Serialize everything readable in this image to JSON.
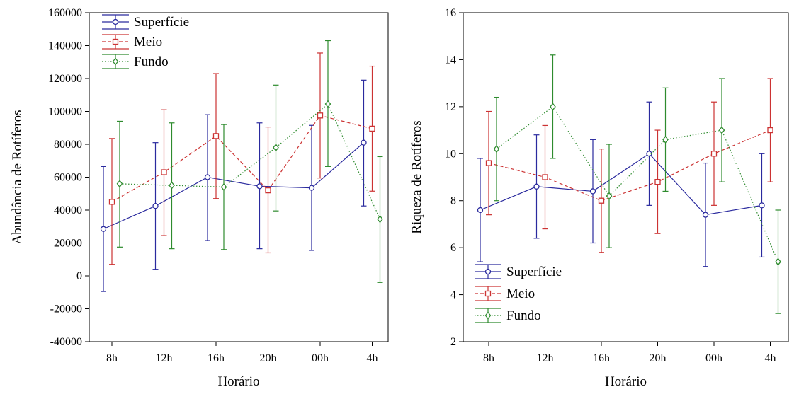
{
  "chart_data": [
    {
      "type": "line",
      "xlabel": "Horário",
      "ylabel": "Abundância de Rotíferos",
      "categories": [
        "8h",
        "12h",
        "16h",
        "20h",
        "00h",
        "4h"
      ],
      "ylim": [
        -40000,
        160000
      ],
      "yticks": [
        "-40000",
        "-20000",
        "0",
        "20000",
        "40000",
        "60000",
        "80000",
        "100000",
        "120000",
        "140000",
        "160000"
      ],
      "ytick_values": [
        -40000,
        -20000,
        0,
        20000,
        40000,
        60000,
        80000,
        100000,
        120000,
        140000,
        160000
      ],
      "legend_position": "top-left",
      "series": [
        {
          "name": "Superfície",
          "color": "#2a2a9e",
          "dash": "solid",
          "marker": "circle",
          "values": [
            28500,
            42500,
            60000,
            54500,
            53500,
            81000
          ],
          "lower": [
            -9500,
            4000,
            21500,
            16500,
            15500,
            42500
          ],
          "upper": [
            66500,
            81000,
            98000,
            93000,
            91500,
            119000
          ]
        },
        {
          "name": "Meio",
          "color": "#cc3333",
          "dash": "dashed",
          "marker": "square",
          "values": [
            45000,
            63000,
            85000,
            52000,
            97500,
            89500
          ],
          "lower": [
            7000,
            24500,
            47000,
            14000,
            59500,
            51500
          ],
          "upper": [
            83500,
            101000,
            123000,
            90500,
            135500,
            127500
          ]
        },
        {
          "name": "Fundo",
          "color": "#2e8b2e",
          "dash": "dotted",
          "marker": "diamond",
          "values": [
            56000,
            55000,
            54000,
            78000,
            104500,
            34500
          ],
          "lower": [
            17500,
            16500,
            16000,
            39500,
            66500,
            -4000
          ],
          "upper": [
            94000,
            93000,
            92000,
            116000,
            143000,
            72500
          ]
        }
      ]
    },
    {
      "type": "line",
      "xlabel": "Horário",
      "ylabel": "Riqueza de Rotíferos",
      "categories": [
        "8h",
        "12h",
        "16h",
        "20h",
        "00h",
        "4h"
      ],
      "ylim": [
        2,
        16
      ],
      "yticks": [
        "2",
        "4",
        "6",
        "8",
        "10",
        "12",
        "14",
        "16"
      ],
      "ytick_values": [
        2,
        4,
        6,
        8,
        10,
        12,
        14,
        16
      ],
      "legend_position": "bottom-left",
      "series": [
        {
          "name": "Superfície",
          "color": "#2a2a9e",
          "dash": "solid",
          "marker": "circle",
          "values": [
            7.6,
            8.6,
            8.4,
            10.0,
            7.4,
            7.8
          ],
          "lower": [
            5.4,
            6.4,
            6.2,
            7.8,
            5.2,
            5.6
          ],
          "upper": [
            9.8,
            10.8,
            10.6,
            12.2,
            9.6,
            10.0
          ]
        },
        {
          "name": "Meio",
          "color": "#cc3333",
          "dash": "dashed",
          "marker": "square",
          "values": [
            9.6,
            9.0,
            8.0,
            8.8,
            10.0,
            11.0
          ],
          "lower": [
            7.4,
            6.8,
            5.8,
            6.6,
            7.8,
            8.8
          ],
          "upper": [
            11.8,
            11.2,
            10.2,
            11.0,
            12.2,
            13.2
          ]
        },
        {
          "name": "Fundo",
          "color": "#2e8b2e",
          "dash": "dotted",
          "marker": "diamond",
          "values": [
            10.2,
            12.0,
            8.2,
            10.6,
            11.0,
            5.4
          ],
          "lower": [
            8.0,
            9.8,
            6.0,
            8.4,
            8.8,
            3.2
          ],
          "upper": [
            12.4,
            14.2,
            10.4,
            12.8,
            13.2,
            7.6
          ]
        }
      ]
    }
  ]
}
